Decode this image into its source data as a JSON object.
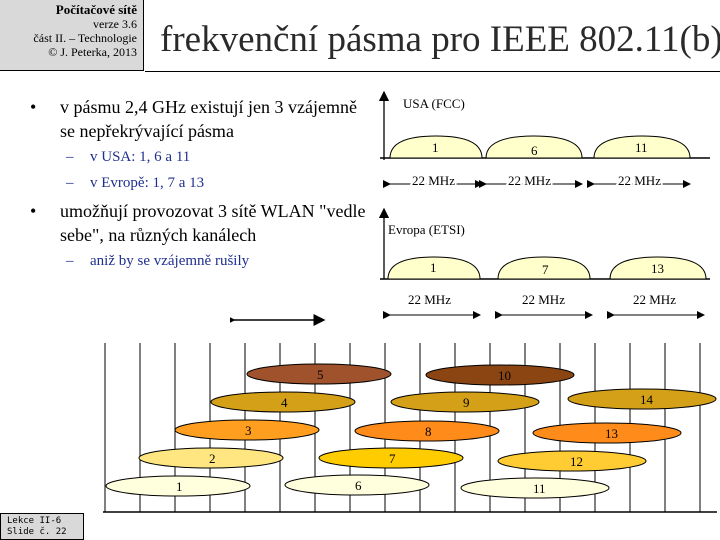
{
  "header": {
    "course": "Počítačové sítě",
    "version": "verze 3.6",
    "part": "část II. – Technologie",
    "copyright": "© J. Peterka, 2013"
  },
  "slide_title": "frekvenční pásma pro IEEE 802.11(b)",
  "bullets": [
    {
      "text": "v pásmu 2,4 GHz existují jen 3 vzájemně se nepřekrývající pásma",
      "subitems": [
        "v USA: 1, 6 a 11",
        "v Evropě: 1, 7 a 13"
      ]
    },
    {
      "text": "umožňují provozovat 3 sítě WLAN \"vedle sebe\", na různých kanálech",
      "subitems": [
        "aniž by se vzájemně rušily"
      ]
    }
  ],
  "usa_diagram": {
    "label": "USA (FCC)",
    "channels": [
      "1",
      "6",
      "11"
    ],
    "widths": [
      "22 MHz",
      "22 MHz",
      "22 MHz"
    ]
  },
  "europe_diagram": {
    "label": "Evropa (ETSI)",
    "channels": [
      "1",
      "7",
      "13"
    ],
    "widths": [
      "22 MHz",
      "22 MHz",
      "22 MHz"
    ]
  },
  "channel_diagram": {
    "channels": [
      {
        "label": "1",
        "color": "#ffffdd"
      },
      {
        "label": "2",
        "color": "#ffe680"
      },
      {
        "label": "3",
        "color": "#ff9e1f"
      },
      {
        "label": "4",
        "color": "#d4a017"
      },
      {
        "label": "5",
        "color": "#a0522d"
      },
      {
        "label": "6",
        "color": "#ffffdd"
      },
      {
        "label": "7",
        "color": "#ffcc00"
      },
      {
        "label": "8",
        "color": "#ff8c1a"
      },
      {
        "label": "9",
        "color": "#d4a017"
      },
      {
        "label": "10",
        "color": "#8b4513"
      },
      {
        "label": "11",
        "color": "#ffffdd"
      },
      {
        "label": "12",
        "color": "#ffcc33"
      },
      {
        "label": "13",
        "color": "#ff8c1a"
      },
      {
        "label": "14",
        "color": "#d4a017"
      }
    ]
  },
  "colors": {
    "bullet_sub_text": "#1f2f8f",
    "band_fill": "#ffffcc"
  },
  "footer": {
    "line1": "Lekce II-6",
    "line2": "Slide č. 22"
  }
}
